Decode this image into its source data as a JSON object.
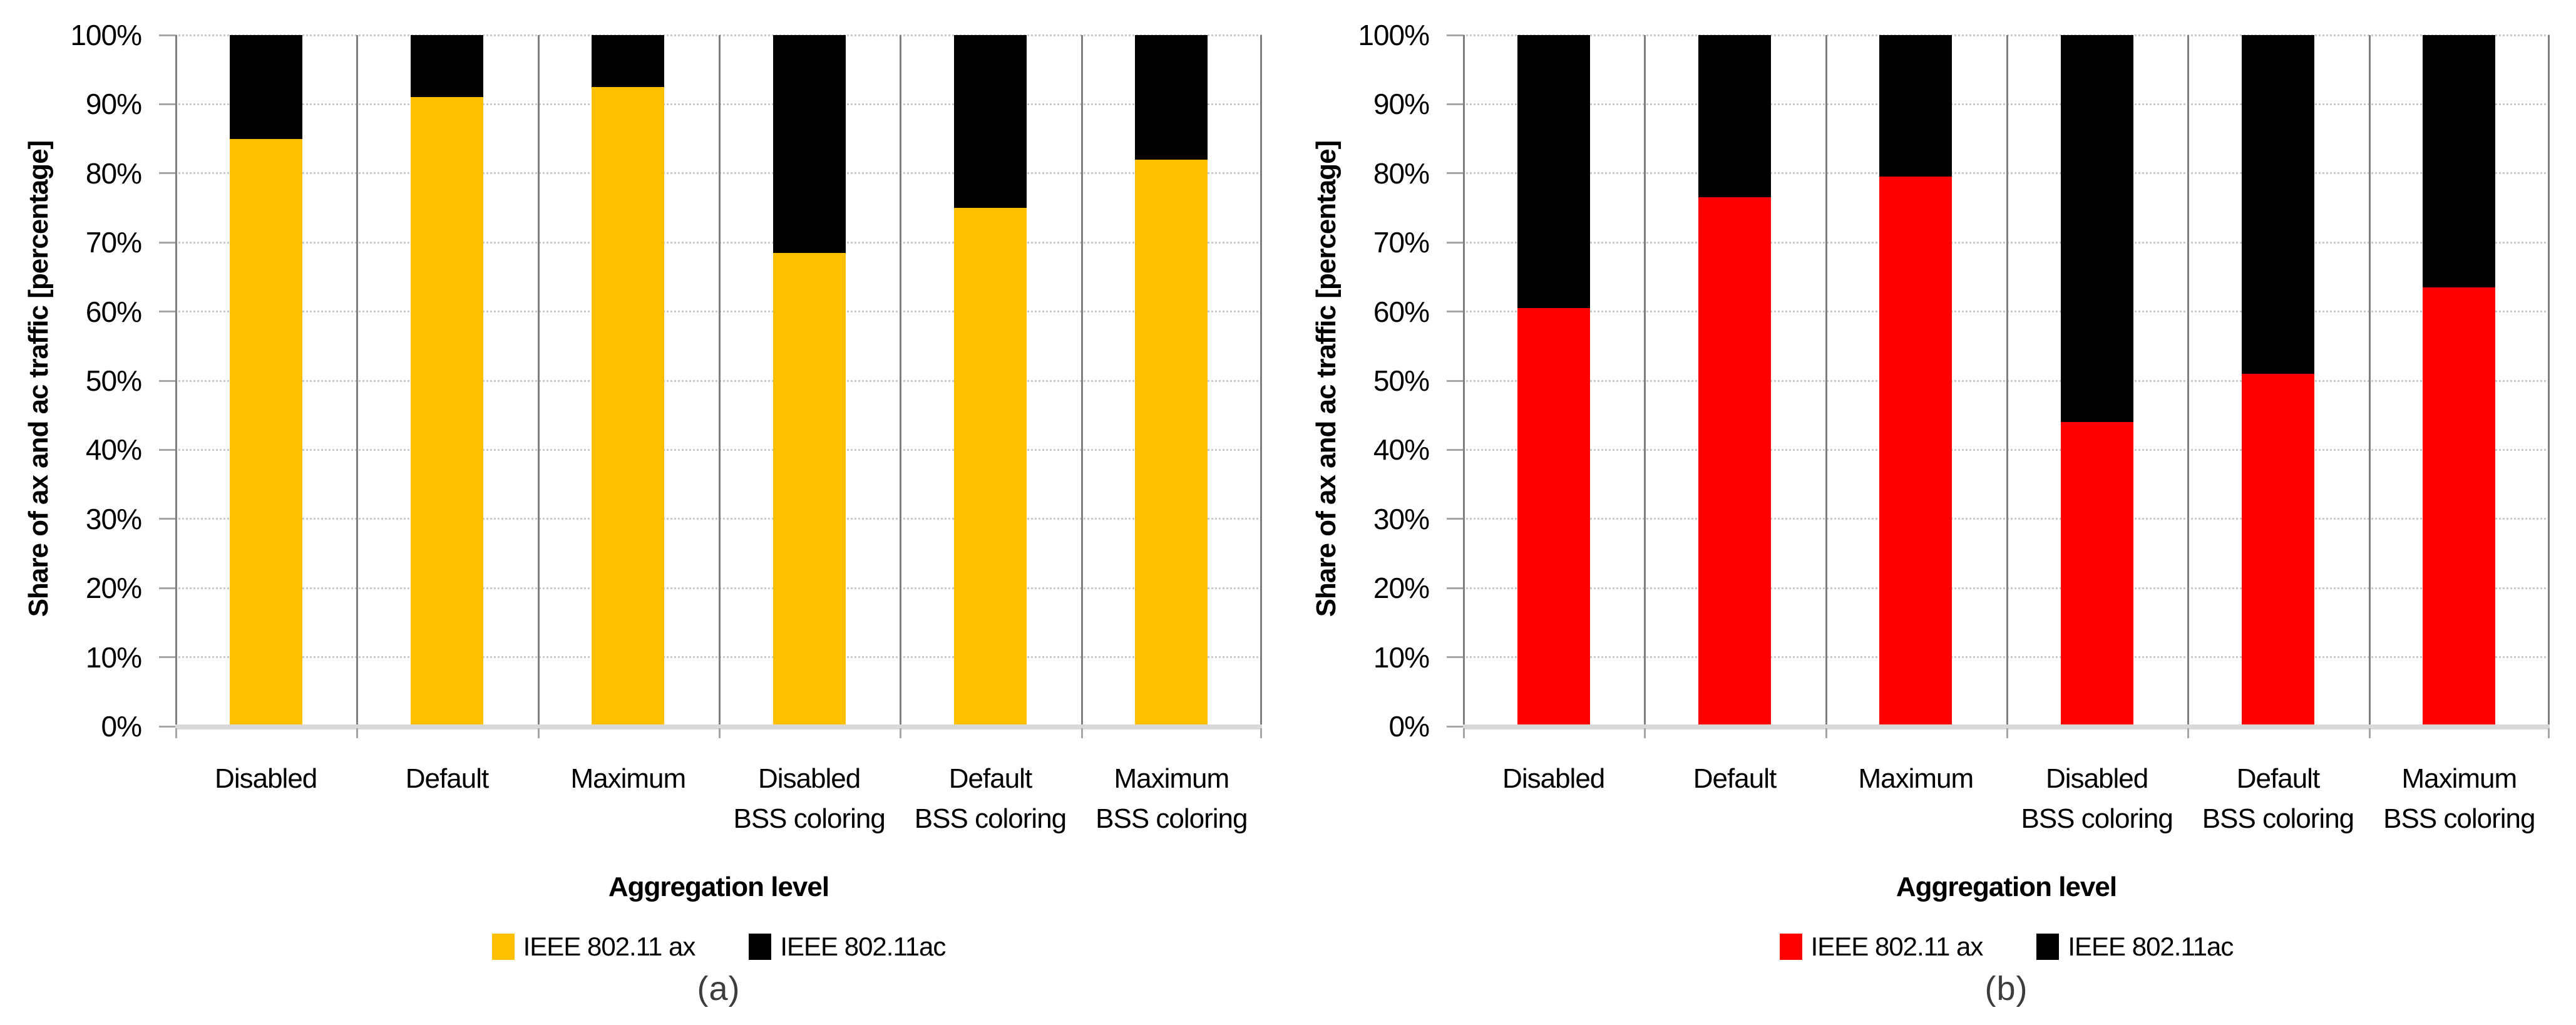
{
  "chart_data": [
    {
      "type": "bar",
      "stacked": true,
      "caption": "(a)",
      "xlabel": "Aggregation level",
      "ylabel": "Share of ax and ac traffic [percentage]",
      "ylim": [
        0,
        100
      ],
      "ytick_step": 10,
      "ytick_labels": [
        "100%",
        "90%",
        "80%",
        "70%",
        "60%",
        "50%",
        "40%",
        "30%",
        "20%",
        "10%",
        "0%"
      ],
      "grid": "horizontal-dotted",
      "legend_position": "bottom",
      "categories": [
        "Disabled",
        "Default",
        "Maximum",
        "Disabled BSS coloring",
        "Default BSS coloring",
        "Maximum BSS coloring"
      ],
      "categories_lines": [
        [
          "Disabled"
        ],
        [
          "Default"
        ],
        [
          "Maximum"
        ],
        [
          "Disabled",
          "BSS coloring"
        ],
        [
          "Default",
          "BSS coloring"
        ],
        [
          "Maximum",
          "BSS coloring"
        ]
      ],
      "series": [
        {
          "name": "IEEE 802.11 ax",
          "color": "#FFC000",
          "values": [
            85,
            91,
            92.5,
            68.5,
            75,
            82
          ]
        },
        {
          "name": "IEEE 802.11ac",
          "color": "#000000",
          "values": [
            15,
            9,
            7.5,
            31.5,
            25,
            18
          ]
        }
      ]
    },
    {
      "type": "bar",
      "stacked": true,
      "caption": "(b)",
      "xlabel": "Aggregation level",
      "ylabel": "Share of ax and ac traffic [percentage]",
      "ylim": [
        0,
        100
      ],
      "ytick_step": 10,
      "ytick_labels": [
        "100%",
        "90%",
        "80%",
        "70%",
        "60%",
        "50%",
        "40%",
        "30%",
        "20%",
        "10%",
        "0%"
      ],
      "grid": "horizontal-dotted",
      "legend_position": "bottom",
      "categories": [
        "Disabled",
        "Default",
        "Maximum",
        "Disabled BSS coloring",
        "Default BSS coloring",
        "Maximum BSS coloring"
      ],
      "categories_lines": [
        [
          "Disabled"
        ],
        [
          "Default"
        ],
        [
          "Maximum"
        ],
        [
          "Disabled",
          "BSS coloring"
        ],
        [
          "Default",
          "BSS coloring"
        ],
        [
          "Maximum",
          "BSS coloring"
        ]
      ],
      "series": [
        {
          "name": "IEEE 802.11 ax",
          "color": "#FF0000",
          "values": [
            60.5,
            76.5,
            79.5,
            44,
            51,
            63.5
          ]
        },
        {
          "name": "IEEE 802.11ac",
          "color": "#000000",
          "values": [
            39.5,
            23.5,
            20.5,
            56,
            49,
            36.5
          ]
        }
      ]
    }
  ],
  "colors": {
    "gridline": "#c9c9c9",
    "separator": "#7f7f7f",
    "axis_baseline": "#d9d9d9",
    "tick": "#a6a6a6"
  }
}
